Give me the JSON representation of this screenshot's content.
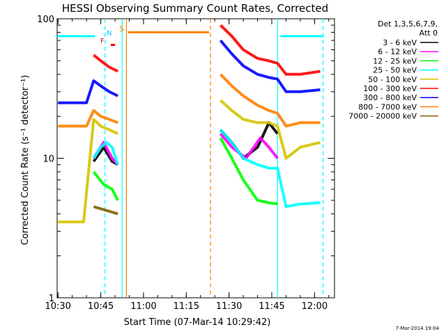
{
  "chart_data": {
    "type": "line",
    "title": "HESSI Observing Summary Count Rates, Corrected",
    "xlabel": "Start Time (07-Mar-14 10:29:42)",
    "ylabel": "Corrected Count Rate (s⁻¹ detector⁻¹)",
    "y_scale": "log",
    "ylim": [
      1,
      100
    ],
    "xlim": [
      "10:29:42",
      "12:07:00"
    ],
    "x_ticks": [
      "10:30",
      "10:45",
      "11:00",
      "11:15",
      "11:30",
      "11:45",
      "12:00"
    ],
    "y_ticks": [
      "1",
      "10",
      "100"
    ],
    "legend_header": [
      "Det 1,3,5,6,7,9,",
      "Att 0"
    ],
    "timestamp": "7-Mar-2014 19:04",
    "flag_labels": {
      "F": "F",
      "N": "N",
      "S": "S"
    },
    "series": [
      {
        "name": "3 - 6 keV",
        "color": "#000000",
        "x": [
          "10:42:30",
          "10:46:00",
          "10:49:00",
          "10:51:00",
          "11:27:00",
          "11:31:00",
          "11:35:00",
          "11:40:00",
          "11:44:00",
          "11:47:00"
        ],
        "y": [
          9.5,
          12,
          9.5,
          9,
          16,
          13,
          10,
          12,
          18,
          15
        ]
      },
      {
        "name": "6 - 12 keV",
        "color": "#ff00ff",
        "x": [
          "10:42:30",
          "10:46:00",
          "10:49:00",
          "10:51:00",
          "11:27:00",
          "11:31:00",
          "11:36:00",
          "11:41:00",
          "11:44:00",
          "11:47:00"
        ],
        "y": [
          10,
          13,
          10,
          9,
          15,
          12,
          10,
          14,
          12,
          10
        ]
      },
      {
        "name": "12 - 25 keV",
        "color": "#00ff00",
        "x": [
          "10:42:30",
          "10:46:00",
          "10:49:00",
          "10:51:00",
          "11:27:00",
          "11:31:00",
          "11:35:00",
          "11:40:00",
          "11:44:00",
          "11:47:00"
        ],
        "y": [
          8,
          6.5,
          6,
          5,
          14,
          10,
          7,
          5,
          4.8,
          4.7
        ]
      },
      {
        "name": "25 - 50 keV",
        "color": "#00ffff",
        "x": [
          "10:42:30",
          "10:45:00",
          "10:47:00",
          "10:49:00",
          "10:51:00",
          "11:27:00",
          "11:31:00",
          "11:35:00",
          "11:40:00",
          "11:44:00",
          "11:47:00",
          "11:50:00",
          "11:55:00",
          "12:02:00"
        ],
        "y": [
          10,
          12,
          13,
          12,
          9,
          16,
          13,
          10,
          9,
          8.5,
          8.5,
          4.5,
          4.7,
          4.8
        ]
      },
      {
        "name": "50 - 100 keV",
        "color": "#d4c400",
        "x": [
          "10:30:00",
          "10:33:00",
          "10:36:00",
          "10:39:00",
          "10:42:30",
          "10:45:00",
          "10:48:00",
          "10:51:00",
          "11:27:00",
          "11:31:00",
          "11:35:00",
          "11:40:00",
          "11:44:00",
          "11:47:00",
          "11:50:00",
          "11:55:00",
          "12:02:00"
        ],
        "y": [
          3.5,
          3.5,
          3.5,
          3.5,
          19,
          17,
          16,
          15,
          26,
          22,
          19,
          18,
          18,
          17,
          10,
          12,
          13
        ]
      },
      {
        "name": "100 - 300 keV",
        "color": "#ff0000",
        "x": [
          "10:42:30",
          "10:45:00",
          "10:48:00",
          "10:51:00",
          "11:27:00",
          "11:31:00",
          "11:35:00",
          "11:40:00",
          "11:44:00",
          "11:47:00",
          "11:50:00",
          "11:55:00",
          "12:02:00"
        ],
        "y": [
          55,
          50,
          45,
          42,
          90,
          75,
          60,
          52,
          50,
          48,
          40,
          40,
          42
        ]
      },
      {
        "name": "300 - 800 keV",
        "color": "#0000ff",
        "x": [
          "10:30:00",
          "10:36:00",
          "10:40:00",
          "10:42:30",
          "10:45:00",
          "10:48:00",
          "10:51:00",
          "11:27:00",
          "11:31:00",
          "11:35:00",
          "11:40:00",
          "11:44:00",
          "11:47:00",
          "11:50:00",
          "11:55:00",
          "12:02:00"
        ],
        "y": [
          25,
          25,
          25,
          36,
          33,
          30,
          28,
          70,
          56,
          46,
          40,
          38,
          37,
          30,
          30,
          31
        ]
      },
      {
        "name": "800 - 7000 keV",
        "color": "#ff8000",
        "x": [
          "10:30:00",
          "10:36:00",
          "10:40:00",
          "10:42:30",
          "10:45:00",
          "10:48:00",
          "10:51:00",
          "11:27:00",
          "11:31:00",
          "11:35:00",
          "11:40:00",
          "11:44:00",
          "11:47:00",
          "11:50:00",
          "11:55:00",
          "12:02:00"
        ],
        "y": [
          17,
          17,
          17,
          22,
          20,
          19,
          18,
          40,
          33,
          28,
          24,
          22,
          21,
          17,
          18,
          18
        ]
      },
      {
        "name": "7000 - 20000 keV",
        "color": "#806000",
        "x": [
          "10:42:30",
          "10:51:00"
        ],
        "y": [
          4.5,
          4.0
        ]
      }
    ],
    "attenuator_levels": [
      {
        "color": "#00ffff",
        "segments": [
          [
            "10:29:42",
            "10:43:00"
          ],
          [
            "11:48:00",
            "12:03:00"
          ]
        ],
        "y": 75
      },
      {
        "color": "#ff8000",
        "segments": [
          [
            "10:54:30",
            "11:23:00"
          ]
        ],
        "y": 80
      },
      {
        "color": "#ff0000",
        "segments": [
          [
            "10:48:30",
            "10:50:00"
          ]
        ],
        "y": 65
      }
    ],
    "vertical_markers": [
      {
        "time": "10:46:30",
        "color": "#00ffff",
        "style": "dashed"
      },
      {
        "time": "10:52:30",
        "color": "#00ffff",
        "style": "solid"
      },
      {
        "time": "10:54:00",
        "color": "#ff8000",
        "style": "solid"
      },
      {
        "time": "11:23:30",
        "color": "#ff8000",
        "style": "dashed"
      },
      {
        "time": "11:47:00",
        "color": "#00ffff",
        "style": "solid"
      },
      {
        "time": "12:03:00",
        "color": "#00ffff",
        "style": "dashed"
      }
    ],
    "grid": false,
    "legend_position": "right"
  }
}
